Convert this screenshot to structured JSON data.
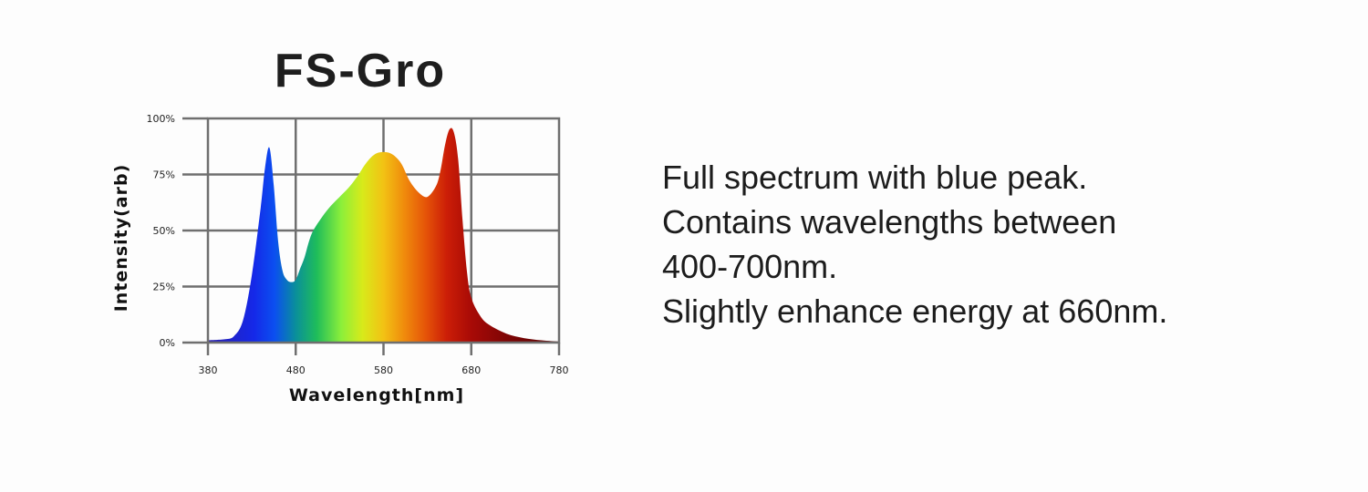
{
  "chart_data": {
    "type": "area",
    "title": "FS-Gro",
    "xlabel": "Wavelength[nm]",
    "ylabel": "Intensity(arb)",
    "xlim": [
      380,
      780
    ],
    "ylim": [
      0,
      100
    ],
    "x_ticks": [
      "380",
      "480",
      "580",
      "680",
      "780"
    ],
    "y_ticks": [
      "0%",
      "25%",
      "50%",
      "75%",
      "100%"
    ],
    "grid": true,
    "fill": "wavelength-spectrum-gradient",
    "series": [
      {
        "x": [
          380,
          400,
          410,
          420,
          430,
          440,
          445,
          450,
          455,
          460,
          465,
          470,
          475,
          480,
          485,
          490,
          495,
          500,
          510,
          520,
          530,
          540,
          550,
          560,
          570,
          580,
          590,
          600,
          610,
          620,
          630,
          640,
          645,
          650,
          655,
          660,
          665,
          670,
          675,
          680,
          690,
          700,
          720,
          740,
          760,
          780
        ],
        "y": [
          1,
          1.5,
          3,
          10,
          30,
          60,
          78,
          87,
          70,
          45,
          32,
          28,
          27,
          28,
          33,
          38,
          45,
          50,
          56,
          61,
          65,
          69,
          74,
          80,
          84,
          85,
          84,
          80,
          72,
          67,
          65,
          70,
          77,
          88,
          95,
          94,
          82,
          55,
          32,
          20,
          12,
          8,
          4,
          2,
          1,
          0.5
        ]
      }
    ]
  },
  "description": {
    "lines": [
      "Full spectrum with blue peak.",
      "Contains wavelengths between",
      "400-700nm.",
      "Slightly enhance energy at 660nm."
    ]
  }
}
